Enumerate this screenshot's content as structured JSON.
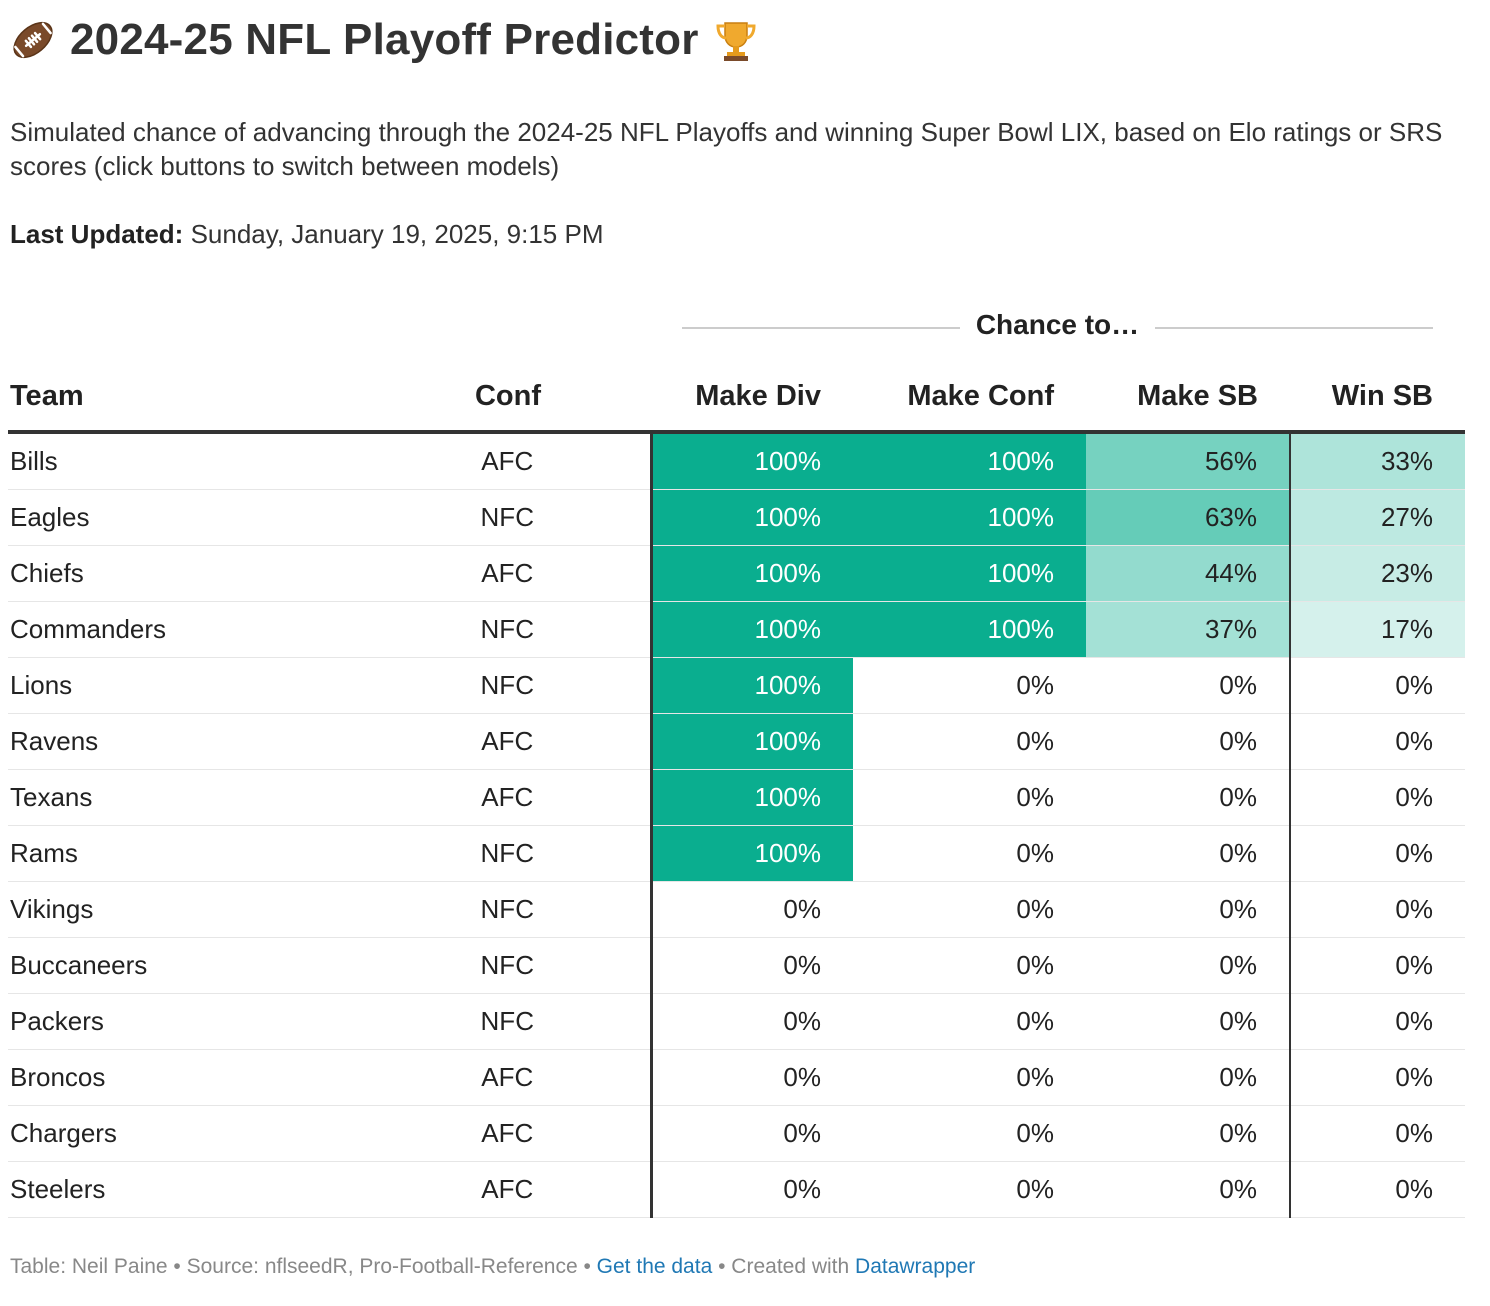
{
  "header": {
    "title": "2024-25 NFL Playoff Predictor",
    "description": "Simulated chance of advancing through the 2024-25 NFL Playoffs and winning Super Bowl LIX, based on Elo ratings or SRS scores (click buttons to switch between models)",
    "updated_label": "Last Updated:",
    "updated_value": "Sunday, January 19, 2025, 9:15 PM",
    "emoji_left": "football-icon",
    "emoji_right": "trophy-icon"
  },
  "chart_data": {
    "type": "table",
    "spanner": "Chance to…",
    "columns": [
      "Team",
      "Conf",
      "Make Div",
      "Make Conf",
      "Make SB",
      "Win SB"
    ],
    "rows": [
      [
        "Bills",
        "AFC",
        "100%",
        "100%",
        "56%",
        "33%"
      ],
      [
        "Eagles",
        "NFC",
        "100%",
        "100%",
        "63%",
        "27%"
      ],
      [
        "Chiefs",
        "AFC",
        "100%",
        "100%",
        "44%",
        "23%"
      ],
      [
        "Commanders",
        "NFC",
        "100%",
        "100%",
        "37%",
        "17%"
      ],
      [
        "Lions",
        "NFC",
        "100%",
        "0%",
        "0%",
        "0%"
      ],
      [
        "Ravens",
        "AFC",
        "100%",
        "0%",
        "0%",
        "0%"
      ],
      [
        "Texans",
        "AFC",
        "100%",
        "0%",
        "0%",
        "0%"
      ],
      [
        "Rams",
        "NFC",
        "100%",
        "0%",
        "0%",
        "0%"
      ],
      [
        "Vikings",
        "NFC",
        "0%",
        "0%",
        "0%",
        "0%"
      ],
      [
        "Buccaneers",
        "NFC",
        "0%",
        "0%",
        "0%",
        "0%"
      ],
      [
        "Packers",
        "NFC",
        "0%",
        "0%",
        "0%",
        "0%"
      ],
      [
        "Broncos",
        "AFC",
        "0%",
        "0%",
        "0%",
        "0%"
      ],
      [
        "Chargers",
        "AFC",
        "0%",
        "0%",
        "0%",
        "0%"
      ],
      [
        "Steelers",
        "AFC",
        "0%",
        "0%",
        "0%",
        "0%"
      ]
    ],
    "color_scale": {
      "min_color": "#ffffff",
      "max_color": "#0aae8f"
    }
  },
  "footer": {
    "prefix": "Table: Neil Paine • Source: nflseedR, Pro-Football-Reference •",
    "get_data": "Get the data",
    "mid": "• Created with",
    "datawrapper": "Datawrapper"
  }
}
